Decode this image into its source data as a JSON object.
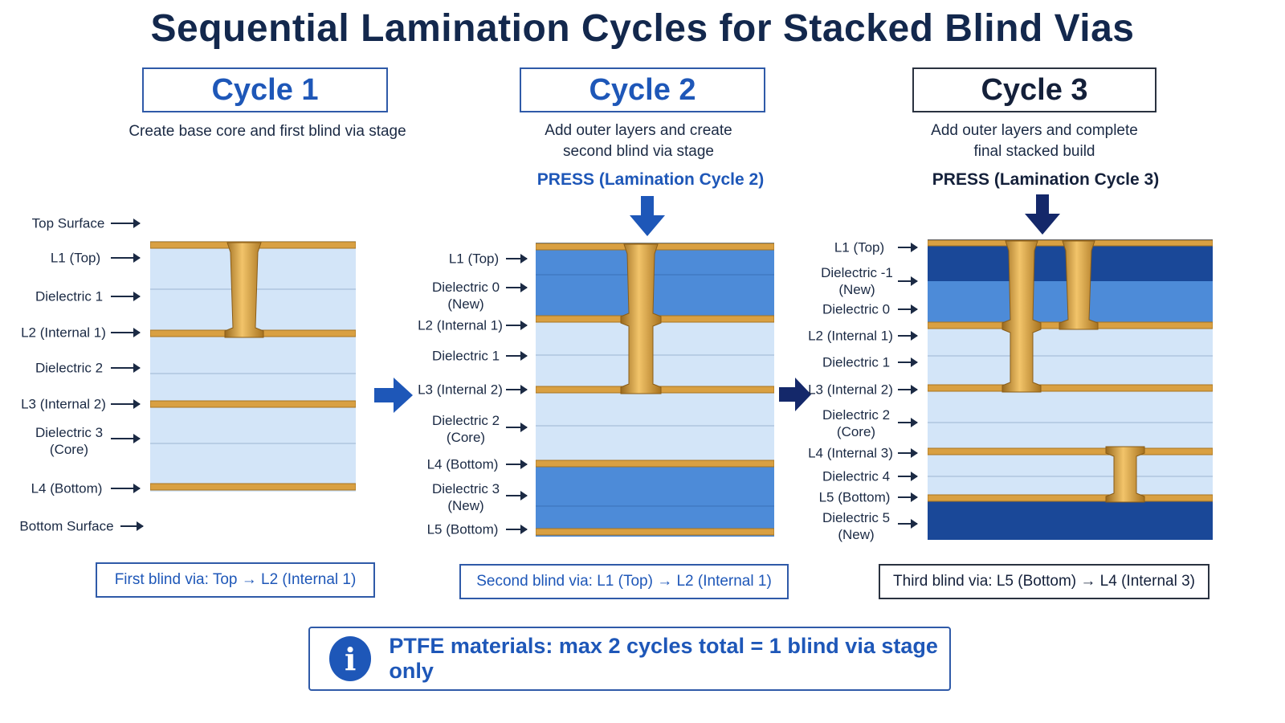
{
  "title": "Sequential Lamination Cycles for Stacked Blind Vias",
  "colors": {
    "accent": "#1e57b8",
    "copper": "#d9a042",
    "dielectric_light": "#d3e5f8",
    "dielectric_mid": "#4d8bd8",
    "dielectric_dark": "#1a4898"
  },
  "cycles": [
    {
      "heading": "Cycle 1",
      "description": "Create base core and first blind via stage",
      "labels": [
        "Top Surface",
        "L1 (Top)",
        "Dielectric 1",
        "L2 (Internal 1)",
        "Dielectric 2",
        "L3 (Internal 2)",
        "Dielectric 3\n(Core)",
        "L4 (Bottom)",
        "Bottom Surface"
      ],
      "note": "First blind via: Top → L2 (Internal 1)"
    },
    {
      "heading": "Cycle 2",
      "description": "Add outer layers and create\nsecond blind via stage",
      "press": "PRESS (Lamination Cycle 2)",
      "labels": [
        "L1 (Top)",
        "Dielectric 0\n(New)",
        "L2 (Internal 1)",
        "Dielectric 1",
        "L3 (Internal 2)",
        "Dielectric 2\n(Core)",
        "L4 (Bottom)",
        "Dielectric 3\n(New)",
        "L5 (Bottom)"
      ],
      "note": "Second blind via: L1 (Top) → L2 (Internal 1)"
    },
    {
      "heading": "Cycle 3",
      "description": "Add outer layers and complete\nfinal stacked build",
      "press": "PRESS (Lamination Cycle 3)",
      "labels": [
        "L1 (Top)",
        "Dielectric -1\n(New)",
        "Dielectric 0",
        "L2 (Internal 1)",
        "Dielectric 1",
        "L3 (Internal 2)",
        "Dielectric 2\n(Core)",
        "L4 (Internal 3)",
        "Dielectric 4",
        "L5 (Bottom)",
        "Dielectric 5\n(New)"
      ],
      "note": "Third blind via: L5 (Bottom) → L4 (Internal 3)"
    }
  ],
  "info": {
    "icon": "info-icon",
    "text": "PTFE materials: max 2 cycles total = 1 blind via stage only"
  }
}
